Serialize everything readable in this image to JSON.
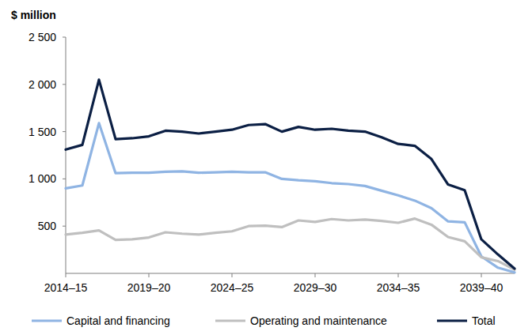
{
  "chart_data": {
    "type": "line",
    "y_label": "$ million",
    "categories": [
      "2014–15",
      null,
      null,
      null,
      null,
      "2019–20",
      null,
      null,
      null,
      null,
      "2024–25",
      null,
      null,
      null,
      null,
      "2029–30",
      null,
      null,
      null,
      null,
      "2034–35",
      null,
      null,
      null,
      null,
      "2039–40",
      null,
      null
    ],
    "series": [
      {
        "name": "Capital and financing",
        "color": "#8fb4e3",
        "values": [
          900,
          930,
          1590,
          1060,
          1065,
          1065,
          1075,
          1080,
          1065,
          1070,
          1075,
          1070,
          1070,
          1000,
          985,
          975,
          955,
          945,
          925,
          875,
          825,
          770,
          690,
          550,
          540,
          180,
          60,
          10
        ]
      },
      {
        "name": "Operating and maintenance",
        "color": "#bfbfbf",
        "values": [
          410,
          430,
          455,
          355,
          360,
          380,
          435,
          420,
          410,
          430,
          445,
          500,
          505,
          490,
          560,
          545,
          575,
          560,
          570,
          555,
          535,
          580,
          515,
          385,
          340,
          170,
          130,
          40
        ]
      },
      {
        "name": "Total",
        "color": "#0b1f44",
        "values": [
          1310,
          1360,
          2050,
          1420,
          1430,
          1450,
          1510,
          1500,
          1480,
          1500,
          1520,
          1570,
          1580,
          1500,
          1550,
          1520,
          1530,
          1510,
          1500,
          1440,
          1370,
          1350,
          1210,
          940,
          880,
          360,
          200,
          50
        ]
      }
    ],
    "ylim": [
      0,
      2500
    ],
    "yticks": [
      {
        "value": 500,
        "label": "500"
      },
      {
        "value": 1000,
        "label": "1 000"
      },
      {
        "value": 1500,
        "label": "1 500"
      },
      {
        "value": 2000,
        "label": "2 000"
      },
      {
        "value": 2500,
        "label": "2 500"
      }
    ],
    "grid": false,
    "legend": "bottom"
  }
}
